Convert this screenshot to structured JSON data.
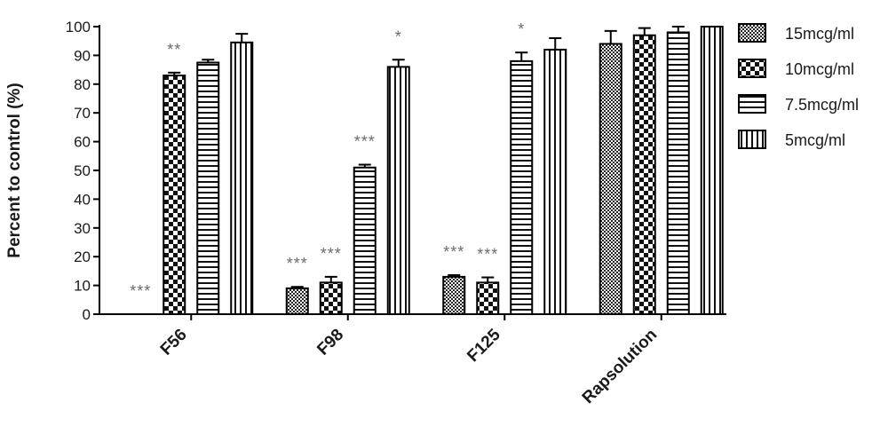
{
  "chart_data": {
    "type": "bar",
    "ylabel": "Percent to control (%)",
    "xlabel": "",
    "ylim": [
      0,
      100
    ],
    "yticks": [
      0,
      10,
      20,
      30,
      40,
      50,
      60,
      70,
      80,
      90,
      100
    ],
    "categories": [
      "F56",
      "F98",
      "F125",
      "Rapsolution"
    ],
    "legend_position": "right",
    "series": [
      {
        "name": "15mcg/ml",
        "pattern": "fine-dots",
        "values": [
          0,
          9,
          13,
          94
        ],
        "errors": [
          0,
          0.5,
          0.6,
          4.5
        ],
        "significance": [
          "***",
          "***",
          "***",
          ""
        ]
      },
      {
        "name": "10mcg/ml",
        "pattern": "checker",
        "values": [
          83,
          11,
          11,
          97
        ],
        "errors": [
          1,
          2,
          1.8,
          2.5
        ],
        "significance": [
          "**",
          "***",
          "***",
          ""
        ]
      },
      {
        "name": "7.5mcg/ml",
        "pattern": "horizontal-stripes",
        "values": [
          87.5,
          51,
          88,
          98
        ],
        "errors": [
          1,
          1,
          3,
          2
        ],
        "significance": [
          "",
          "***",
          "*",
          ""
        ]
      },
      {
        "name": "5mcg/ml",
        "pattern": "vertical-stripes",
        "values": [
          94.5,
          86,
          92,
          100
        ],
        "errors": [
          3,
          2.5,
          4,
          0
        ],
        "significance": [
          "",
          "*",
          "",
          ""
        ]
      }
    ]
  }
}
